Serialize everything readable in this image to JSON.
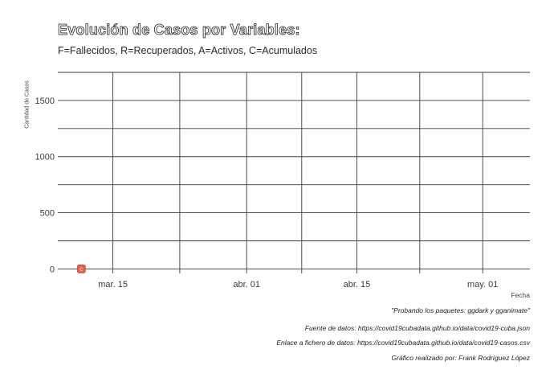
{
  "chart_data": {
    "type": "line",
    "title": "Evolución de Casos por Variables:",
    "subtitle": "F=Fallecidos, R=Recuperados, A=Activos, C=Acumulados",
    "xlabel": "Fecha",
    "ylabel": "Cantidad de Casos",
    "x_ticks": [
      "mar. 15",
      "abr. 01",
      "abr. 15",
      "may. 01"
    ],
    "x_tick_dates": [
      "2020-03-15",
      "2020-04-01",
      "2020-04-15",
      "2020-05-01"
    ],
    "xlim": [
      "2020-03-08",
      "2020-05-07"
    ],
    "y_ticks": [
      0,
      500,
      1000,
      1500
    ],
    "ylim": [
      -40,
      1750
    ],
    "grid": true,
    "series": [
      {
        "label": "C",
        "color": "#e0604a",
        "points": [
          {
            "x": "2020-03-11",
            "y": 0
          }
        ]
      }
    ]
  },
  "captions": [
    "\"Probando los paquetes: ggdark y gganimate\"",
    "Fuente de datos: https://covid19cubadata.github.io/data/covid19-cuba.json",
    "Enlace a fichero de datos: https://covid19cubadata.github.io/data/covid19-casos.csv",
    "Gráfico realizado por: Frank Rodríguez López"
  ]
}
